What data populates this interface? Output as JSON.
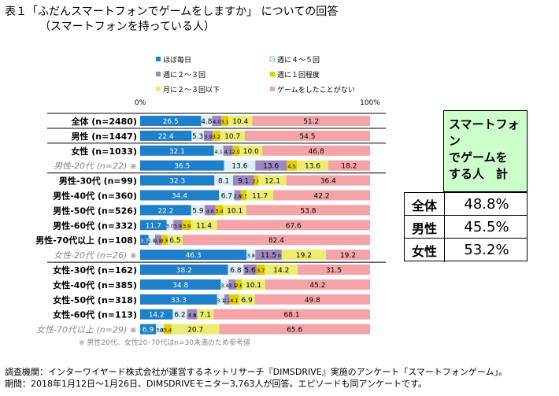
{
  "title_line1": "表１「ふだんスマートフォンでゲームをしますか」 についての回答",
  "title_line2": "（スマートフォンを持っている人）",
  "note": "※ 男性20代、女性20･70代はn=30未満のため参考値",
  "footer_line1": "調査機関：インターワイヤード株式会社が運営するネットリサーチ『DIMSDRIVE』実施のアンケート「スマートフォンゲーム」。",
  "footer_line2": "期間：2018年1月12日～1月26日、DIMSDRIVEモニター3,763人が回答。エピソードも同アンケートです。",
  "chart_data": {
    "type": "bar",
    "orientation": "horizontal-stacked-100",
    "axis_min_label": "0%",
    "axis_max_label": "100%",
    "series": [
      {
        "name": "ほぼ毎日",
        "color": "#1f7fc8"
      },
      {
        "name": "週に４～５回",
        "color": "#ddeef8"
      },
      {
        "name": "週に２～３回",
        "color": "#9b86bd"
      },
      {
        "name": "週に１回程度",
        "color": "#e3cc00"
      },
      {
        "name": "月に２～３回以下",
        "color": "#ecec72"
      },
      {
        "name": "ゲームをしたことがない",
        "color": "#f4a4a8"
      }
    ],
    "rows": [
      {
        "label": "全体 (n=2480)",
        "ref": false,
        "values": [
          26.5,
          4.8,
          4.0,
          3.1,
          10.4,
          51.2
        ]
      },
      {
        "label": "男性 (n=1447)",
        "ref": false,
        "values": [
          22.4,
          5.3,
          3.9,
          3.2,
          10.7,
          54.5
        ]
      },
      {
        "label": "女性 (n=1033)",
        "ref": false,
        "values": [
          32.1,
          4.1,
          4.1,
          2.9,
          10.0,
          46.8
        ]
      },
      {
        "label": "男性-20代 (n=22) ※",
        "ref": true,
        "values": [
          36.5,
          13.6,
          13.6,
          4.5,
          13.6,
          18.2
        ]
      },
      {
        "label": "男性-30代 (n=99)",
        "ref": false,
        "values": [
          32.3,
          8.1,
          9.1,
          2.0,
          12.1,
          36.4
        ]
      },
      {
        "label": "男性-40代 (n=360)",
        "ref": false,
        "values": [
          34.4,
          6.7,
          2.8,
          2.5,
          11.7,
          42.2
        ]
      },
      {
        "label": "男性-50代 (n=526)",
        "ref": false,
        "values": [
          22.2,
          5.9,
          4.6,
          3.4,
          10.1,
          53.8
        ]
      },
      {
        "label": "男性-60代 (n=332)",
        "ref": false,
        "values": [
          11.7,
          3.0,
          3.9,
          3.9,
          11.4,
          67.6
        ]
      },
      {
        "label": "男性-70代以上 (n=108)",
        "ref": false,
        "values": [
          3.7,
          2.8,
          2.8,
          2.8,
          6.5,
          82.4
        ]
      },
      {
        "label": "女性-20代 (n=26) ※",
        "ref": true,
        "values": [
          46.3,
          3.8,
          11.5,
          0.0,
          19.2,
          19.2
        ]
      },
      {
        "label": "女性-30代 (n=162)",
        "ref": false,
        "values": [
          38.2,
          6.8,
          5.6,
          3.7,
          14.2,
          31.5
        ]
      },
      {
        "label": "女性-40代 (n=385)",
        "ref": false,
        "values": [
          34.8,
          3.4,
          3.1,
          2.6,
          10.1,
          45.2
        ]
      },
      {
        "label": "女性-50代 (n=318)",
        "ref": false,
        "values": [
          33.3,
          3.1,
          2.2,
          4.1,
          6.9,
          49.8
        ]
      },
      {
        "label": "女性-60代 (n=113)",
        "ref": false,
        "values": [
          14.2,
          6.2,
          4.4,
          0.0,
          7.1,
          68.1
        ]
      },
      {
        "label": "女性-70代以上 (n=29) ※",
        "ref": true,
        "values": [
          6.9,
          3.4,
          0.0,
          3.4,
          20.7,
          65.6
        ]
      }
    ],
    "value_labels": [
      [
        "26.5",
        "4.8",
        "4.0",
        "3.1",
        "10.4",
        "51.2"
      ],
      [
        "22.4",
        "5.3",
        "3.9",
        "3.2",
        "10.7",
        "54.5"
      ],
      [
        "32.1",
        "4.1",
        "4.1",
        "2.9",
        "10.0",
        "46.8"
      ],
      [
        "36.5",
        "13.6",
        "13.6",
        "4.5",
        "13.6",
        "18.2"
      ],
      [
        "32.3",
        "8.1",
        "9.1",
        "2.0",
        "12.1",
        "36.4"
      ],
      [
        "34.4",
        "6.7",
        "2.8",
        "2.5",
        "11.7",
        "42.2"
      ],
      [
        "22.2",
        "5.9",
        "4.6",
        "3.4",
        "10.1",
        "53.8"
      ],
      [
        "11.7",
        "3.0",
        "3.9",
        "3.9",
        "11.4",
        "67.6"
      ],
      [
        "3.7",
        "2.8",
        "2.8",
        "2.8",
        "6.5",
        "82.4"
      ],
      [
        "46.3",
        "3.8",
        "11.5",
        "0.0",
        "19.2",
        "19.2"
      ],
      [
        "38.2",
        "6.8",
        "5.6",
        "3.7",
        "14.2",
        "31.5"
      ],
      [
        "34.8",
        "3.4",
        "3.1",
        "2.6",
        "10.1",
        "45.2"
      ],
      [
        "33.3",
        "3.1",
        "2.2",
        "4.1",
        "6.9",
        "49.8"
      ],
      [
        "14.2",
        "6.2",
        "4.4",
        "0.0",
        "7.1",
        "68.1"
      ],
      [
        "6.9",
        "3.4",
        "0.0",
        "3.4",
        "20.7",
        "65.6"
      ]
    ]
  },
  "summary_table": {
    "header": [
      "スマートフォン",
      "でゲームを",
      "する人　計"
    ],
    "rows": [
      {
        "label": "全体",
        "value": "48.8%"
      },
      {
        "label": "男性",
        "value": "45.5%"
      },
      {
        "label": "女性",
        "value": "53.2%"
      }
    ]
  }
}
